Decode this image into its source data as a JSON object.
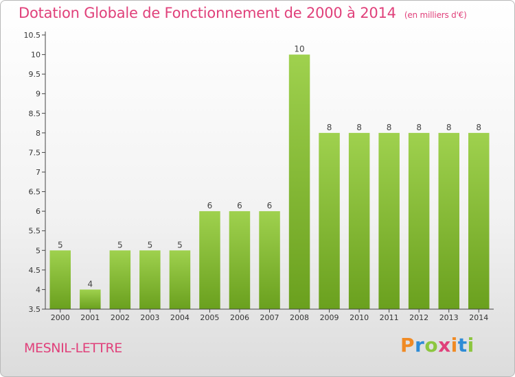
{
  "chart_data": {
    "type": "bar",
    "title": "Dotation Globale de Fonctionnement de 2000 à 2014",
    "subtitle": "(en milliers d'€)",
    "categories": [
      "2000",
      "2001",
      "2002",
      "2003",
      "2004",
      "2005",
      "2006",
      "2007",
      "2008",
      "2009",
      "2010",
      "2011",
      "2012",
      "2013",
      "2014"
    ],
    "values": [
      5,
      4,
      5,
      5,
      5,
      6,
      6,
      6,
      10,
      8,
      8,
      8,
      8,
      8,
      8
    ],
    "value_labels": [
      "5",
      "4",
      "5",
      "5",
      "5",
      "6",
      "6",
      "6",
      "10",
      "8",
      "8",
      "8",
      "8",
      "8",
      "8"
    ],
    "ylim": [
      3.5,
      10.5
    ],
    "yticks": [
      "3.5",
      "4",
      "4.5",
      "5",
      "5.5",
      "6",
      "6.5",
      "7",
      "7.5",
      "8",
      "8.5",
      "9",
      "9.5",
      "10",
      "10.5"
    ],
    "grid": false,
    "bar_color_top": "#9fd14e",
    "bar_color_bottom": "#6aa01e"
  },
  "footer": {
    "commune": "MESNIL-LETTRE",
    "logo_letters": [
      {
        "ch": "P",
        "color": "#f08a24"
      },
      {
        "ch": "r",
        "color": "#2e8bd6"
      },
      {
        "ch": "o",
        "color": "#8cc63f"
      },
      {
        "ch": "x",
        "color": "#e0407a"
      },
      {
        "ch": "i",
        "color": "#f08a24"
      },
      {
        "ch": "t",
        "color": "#2e8bd6"
      },
      {
        "ch": "i",
        "color": "#8cc63f"
      }
    ]
  },
  "colors": {
    "title": "#e0407a",
    "axis": "#444444"
  }
}
